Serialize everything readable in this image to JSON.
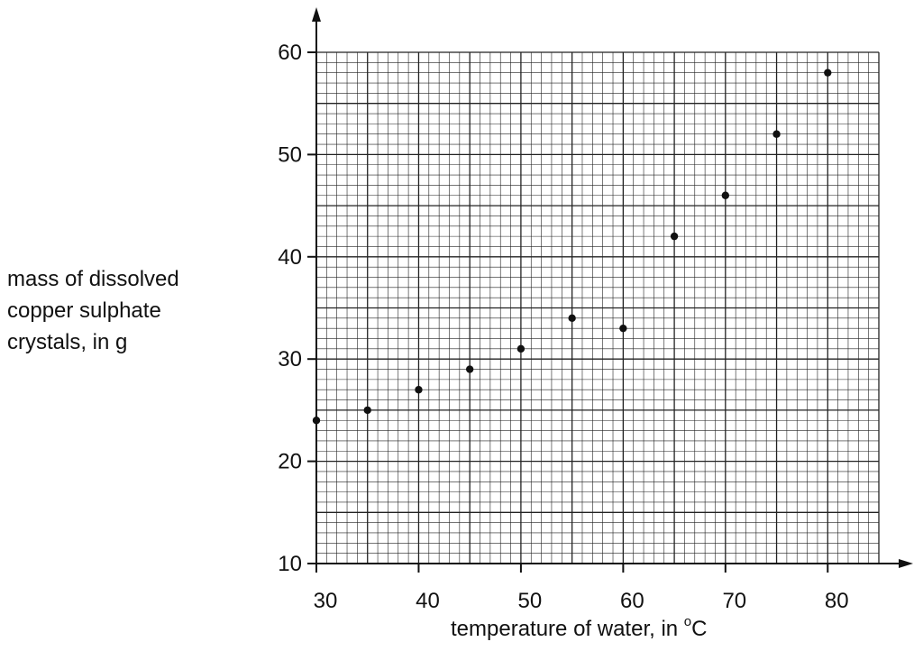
{
  "chart_data": {
    "type": "scatter",
    "title": "",
    "ylabel_lines": [
      "mass of dissolved",
      "copper sulphate",
      "crystals, in g"
    ],
    "xlabel": "temperature of water, in ",
    "xlabel_unit_sup": "o",
    "xlabel_unit": "C",
    "xlim": [
      30,
      85
    ],
    "ylim": [
      10,
      60
    ],
    "x_ticks": [
      30,
      40,
      50,
      60,
      70,
      80
    ],
    "y_ticks": [
      10,
      20,
      30,
      40,
      50,
      60
    ],
    "minor_grid_step_x": 1,
    "minor_grid_step_y": 1,
    "major_grid_step": 5,
    "grid": true,
    "x": [
      30,
      35,
      40,
      45,
      50,
      55,
      60,
      65,
      70,
      75,
      80
    ],
    "y": [
      24,
      25,
      27,
      29,
      31,
      34,
      33,
      42,
      46,
      52,
      58
    ],
    "colors": {
      "points": "#111111",
      "grid": "#222222",
      "axes": "#111111"
    }
  }
}
